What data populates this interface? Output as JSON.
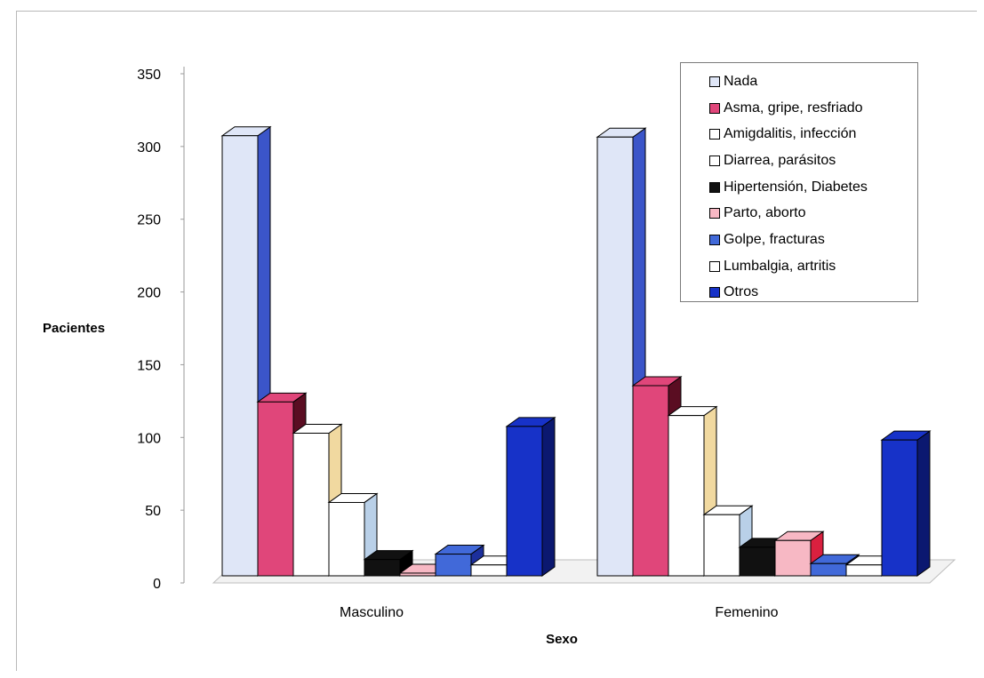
{
  "chart_data": {
    "type": "bar",
    "title": "",
    "xlabel": "Sexo",
    "ylabel": "Pacientes",
    "ylim": [
      0,
      350
    ],
    "yticks": [
      0,
      50,
      100,
      150,
      200,
      250,
      300,
      350
    ],
    "categories": [
      "Masculino",
      "Femenino"
    ],
    "legend_position": "top-right",
    "grid": false,
    "series": [
      {
        "name": "Nada",
        "values": [
          324,
          323
        ],
        "color": "#dfe6f7",
        "side_color": "#3b55c9"
      },
      {
        "name": "Asma, gripe, resfriado",
        "values": [
          128,
          140
        ],
        "color": "#e0467a",
        "side_color": "#5a0d22"
      },
      {
        "name": "Amigdalitis, infección",
        "values": [
          105,
          118
        ],
        "color": "#ffffff",
        "side_color": "#f1d9a0"
      },
      {
        "name": "Diarrea, parásitos",
        "values": [
          54,
          45
        ],
        "color": "#ffffff",
        "side_color": "#b9d0e8"
      },
      {
        "name": "Hipertensión, Diabetes",
        "values": [
          12,
          21
        ],
        "color": "#111111",
        "side_color": "#000000"
      },
      {
        "name": "Parto, aborto",
        "values": [
          2,
          26
        ],
        "color": "#f7b8c4",
        "side_color": "#d9203f"
      },
      {
        "name": "Golpe, fracturas",
        "values": [
          16,
          9
        ],
        "color": "#4169d9",
        "side_color": "#1c2f9c"
      },
      {
        "name": "Lumbalgia, artritis",
        "values": [
          8,
          8
        ],
        "color": "#ffffff",
        "side_color": "#d8d8d8"
      },
      {
        "name": "Otros",
        "values": [
          110,
          100
        ],
        "color": "#1732c8",
        "side_color": "#0b1870"
      }
    ]
  }
}
